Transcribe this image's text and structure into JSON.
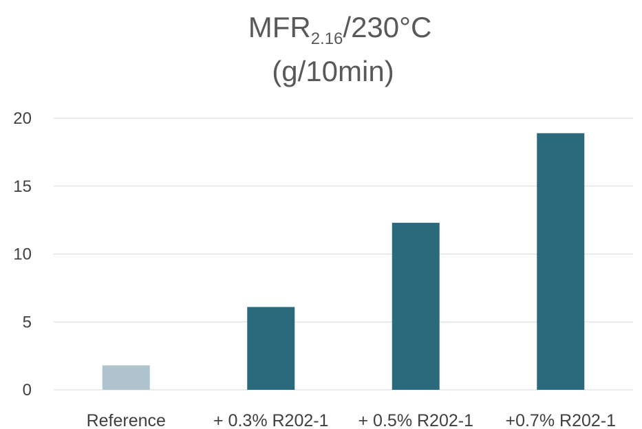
{
  "chart_data": {
    "type": "bar",
    "title": {
      "line1_main": "MFR",
      "line1_sub": "2.16",
      "line1_rest": "/230°C",
      "line2": "(g/10min)"
    },
    "categories": [
      "Reference",
      "+ 0.3% R202-1",
      "+ 0.5% R202-1",
      "+0.7% R202-1"
    ],
    "values": [
      1.8,
      6.1,
      12.3,
      18.9
    ],
    "bar_colors": [
      "#aec3cd",
      "#2a6a7c",
      "#2a6a7c",
      "#2a6a7c"
    ],
    "ylim": [
      0,
      20
    ],
    "yticks": [
      0,
      5,
      10,
      15,
      20
    ],
    "xlabel": "",
    "ylabel": "",
    "grid": true,
    "legend": "none"
  }
}
